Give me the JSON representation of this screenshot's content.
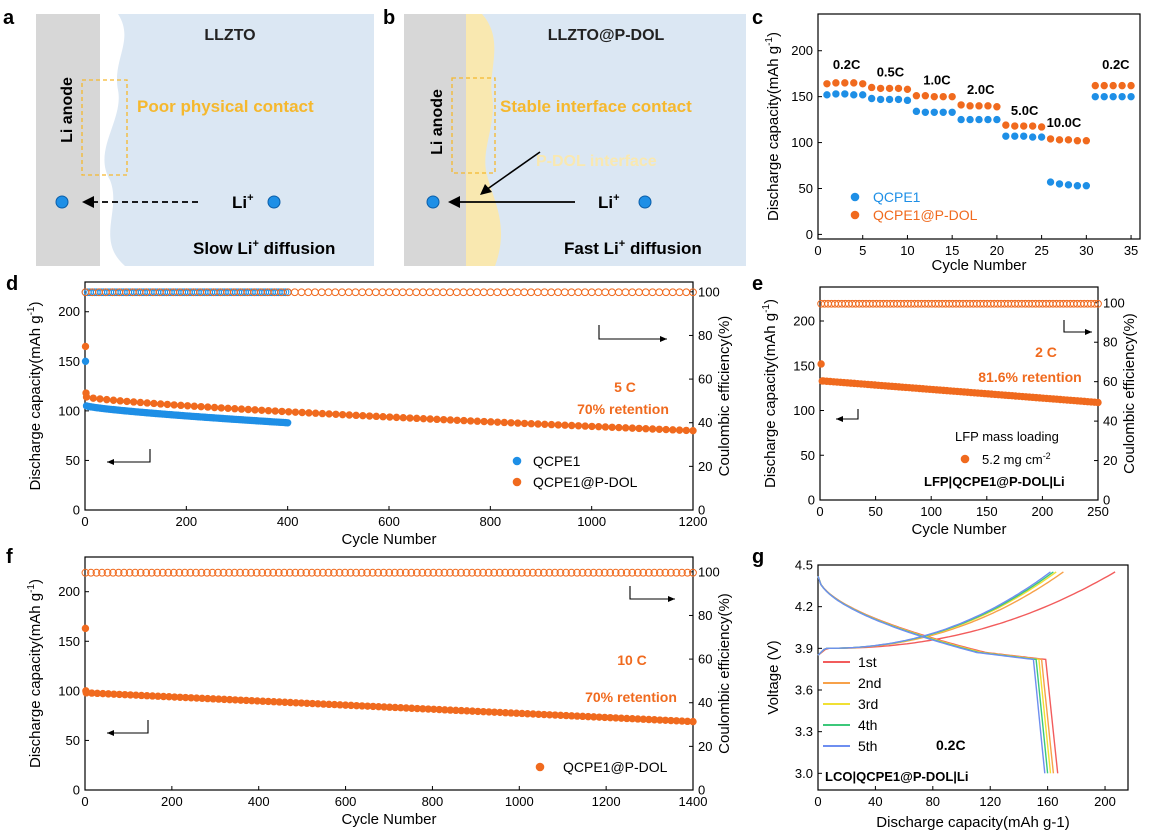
{
  "panels": {
    "a": {
      "letter": "a",
      "title": "LLZTO",
      "anode": "Li anode",
      "contact": "Poor physical contact",
      "ion": "Li",
      "ion_sup": "+",
      "diff_pre": "Slow Li",
      "diff_sup": "+",
      "diff_post": " diffusion"
    },
    "b": {
      "letter": "b",
      "title": "LLZTO@P-DOL",
      "anode": "Li anode",
      "contact": "Stable interface contact",
      "interface": "P-DOL interface",
      "ion": "Li",
      "ion_sup": "+",
      "diff_pre": "Fast Li",
      "diff_sup": "+",
      "diff_post": " diffusion"
    }
  },
  "colors": {
    "blue": "#1e8fe6",
    "orange": "#f06a1e",
    "gray": "#d7d7d7",
    "lightblue": "#dbe7f3",
    "yellow": "#f9e8b0",
    "dashbox": "#f5b82e",
    "annotation": "#f5b82e"
  },
  "chart_data": [
    {
      "panel": "c",
      "type": "scatter",
      "xlabel": "Cycle Number",
      "ylabel": "Discharge capacity(mAh g-1)",
      "xlim": [
        0,
        36
      ],
      "ylim": [
        -5,
        240
      ],
      "xticks": [
        0,
        5,
        10,
        15,
        20,
        25,
        30,
        35
      ],
      "yticks": [
        0,
        50,
        100,
        150,
        200
      ],
      "rate_labels": [
        {
          "text": "0.2C",
          "x": 3.2,
          "y": 180
        },
        {
          "text": "0.5C",
          "x": 8.1,
          "y": 172
        },
        {
          "text": "1.0C",
          "x": 13.3,
          "y": 163
        },
        {
          "text": "2.0C",
          "x": 18.2,
          "y": 153
        },
        {
          "text": "5.0C",
          "x": 23.1,
          "y": 130
        },
        {
          "text": "10.0C",
          "x": 27.5,
          "y": 117
        },
        {
          "text": "0.2C",
          "x": 33.3,
          "y": 180
        }
      ],
      "series": [
        {
          "name": "QCPE1",
          "color": "#1e8fe6",
          "points": [
            [
              1,
              152
            ],
            [
              2,
              153
            ],
            [
              3,
              153
            ],
            [
              4,
              152
            ],
            [
              5,
              152
            ],
            [
              6,
              148
            ],
            [
              7,
              147
            ],
            [
              8,
              147
            ],
            [
              9,
              147
            ],
            [
              10,
              146
            ],
            [
              11,
              134
            ],
            [
              12,
              133
            ],
            [
              13,
              133
            ],
            [
              14,
              133
            ],
            [
              15,
              133
            ],
            [
              16,
              125
            ],
            [
              17,
              125
            ],
            [
              18,
              125
            ],
            [
              19,
              125
            ],
            [
              20,
              125
            ],
            [
              21,
              107
            ],
            [
              22,
              107
            ],
            [
              23,
              107
            ],
            [
              24,
              106
            ],
            [
              25,
              106
            ],
            [
              26,
              57
            ],
            [
              27,
              55
            ],
            [
              28,
              54
            ],
            [
              29,
              53
            ],
            [
              30,
              53
            ],
            [
              31,
              150
            ],
            [
              32,
              150
            ],
            [
              33,
              150
            ],
            [
              34,
              150
            ],
            [
              35,
              150
            ]
          ]
        },
        {
          "name": "QCPE1@P-DOL",
          "color": "#f06a1e",
          "points": [
            [
              1,
              164
            ],
            [
              2,
              165
            ],
            [
              3,
              165
            ],
            [
              4,
              165
            ],
            [
              5,
              164
            ],
            [
              6,
              160
            ],
            [
              7,
              159
            ],
            [
              8,
              159
            ],
            [
              9,
              159
            ],
            [
              10,
              158
            ],
            [
              11,
              151
            ],
            [
              12,
              151
            ],
            [
              13,
              150
            ],
            [
              14,
              150
            ],
            [
              15,
              150
            ],
            [
              16,
              141
            ],
            [
              17,
              140
            ],
            [
              18,
              140
            ],
            [
              19,
              140
            ],
            [
              20,
              139
            ],
            [
              21,
              119
            ],
            [
              22,
              118
            ],
            [
              23,
              118
            ],
            [
              24,
              118
            ],
            [
              25,
              117
            ],
            [
              26,
              104
            ],
            [
              27,
              103
            ],
            [
              28,
              103
            ],
            [
              29,
              102
            ],
            [
              30,
              102
            ],
            [
              31,
              162
            ],
            [
              32,
              162
            ],
            [
              33,
              162
            ],
            [
              34,
              162
            ],
            [
              35,
              162
            ]
          ]
        }
      ]
    },
    {
      "panel": "d",
      "type": "scatter",
      "xlabel": "Cycle Number",
      "ylabel": "Discharge capacity(mAh g-1)",
      "y2label": "Coulombic efficiency(%)",
      "xlim": [
        0,
        1200
      ],
      "ylim": [
        0,
        230
      ],
      "y2lim": [
        0,
        104.5
      ],
      "xticks": [
        0,
        200,
        400,
        600,
        800,
        1000,
        1200
      ],
      "yticks": [
        0,
        50,
        100,
        150,
        200
      ],
      "y2ticks": [
        0,
        20,
        40,
        60,
        80,
        100
      ],
      "annotations": [
        "5 C",
        "70% retention"
      ],
      "series": [
        {
          "name": "QCPE1",
          "kind": "capacity",
          "color": "#1e8fe6",
          "start": 105,
          "end": 88,
          "x_end": 400,
          "first": [
            [
              1,
              150
            ]
          ]
        },
        {
          "name": "QCPE1@P-DOL",
          "kind": "capacity",
          "color": "#f06a1e",
          "start": 114,
          "end": 80,
          "x_end": 1200,
          "first": [
            [
              1,
              165
            ],
            [
              2,
              118
            ]
          ]
        },
        {
          "name": "QCPE1",
          "kind": "efficiency",
          "color": "#1e8fe6",
          "value": 99.8,
          "x_end": 400
        },
        {
          "name": "QCPE1@P-DOL",
          "kind": "efficiency",
          "color": "#f06a1e",
          "value": 99.8,
          "x_end": 1200
        }
      ]
    },
    {
      "panel": "e",
      "type": "scatter",
      "xlabel": "Cycle Number",
      "ylabel": "Discharge capacity(mAh g-1)",
      "y2label": "Coulombic efficiency(%)",
      "xlim": [
        0,
        250
      ],
      "ylim": [
        0,
        238
      ],
      "y2lim": [
        0,
        108
      ],
      "xticks": [
        0,
        50,
        100,
        150,
        200,
        250
      ],
      "yticks": [
        0,
        50,
        100,
        150,
        200
      ],
      "y2ticks": [
        0,
        20,
        40,
        60,
        80,
        100
      ],
      "annotations": [
        "2 C",
        "81.6% retention"
      ],
      "loading_label": "LFP mass loading",
      "loading_value": "5.2 mg cm-2",
      "cell_label": "LFP|QCPE1@P-DOL|Li",
      "series": [
        {
          "name": "QCPE1@P-DOL",
          "kind": "capacity",
          "color": "#f06a1e",
          "start": 133,
          "end": 109,
          "x_end": 250,
          "first": [
            [
              1,
              152
            ],
            [
              2,
              133
            ]
          ]
        },
        {
          "name": "QCPE1@P-DOL",
          "kind": "efficiency",
          "color": "#f06a1e",
          "value": 99.5,
          "x_end": 250
        }
      ]
    },
    {
      "panel": "f",
      "type": "scatter",
      "xlabel": "Cycle Number",
      "ylabel": "Discharge capacity(mAh g-1)",
      "y2label": "Coulombic efficiency(%)",
      "xlim": [
        0,
        1400
      ],
      "ylim": [
        0,
        235
      ],
      "y2lim": [
        0,
        106.8
      ],
      "xticks": [
        0,
        200,
        400,
        600,
        800,
        1000,
        1200,
        1400
      ],
      "yticks": [
        0,
        50,
        100,
        150,
        200
      ],
      "y2ticks": [
        0,
        20,
        40,
        60,
        80,
        100
      ],
      "annotations": [
        "10 C",
        "70% retention"
      ],
      "series": [
        {
          "name": "QCPE1@P-DOL",
          "kind": "capacity",
          "color": "#f06a1e",
          "start": 98,
          "end": 69,
          "x_end": 1400,
          "first": [
            [
              1,
              163
            ],
            [
              2,
              100
            ]
          ]
        },
        {
          "name": "QCPE1@P-DOL",
          "kind": "efficiency",
          "color": "#f06a1e",
          "value": 99.6,
          "x_end": 1400
        }
      ]
    },
    {
      "panel": "g",
      "type": "line",
      "xlabel": "Discharge capacity(mAh g-1)",
      "ylabel": "Voltage (V)",
      "xlim": [
        0,
        216
      ],
      "ylim": [
        2.88,
        4.5
      ],
      "xticks": [
        0,
        40,
        80,
        120,
        160,
        200
      ],
      "yticks": [
        3.0,
        3.3,
        3.6,
        3.9,
        4.2,
        4.5
      ],
      "rate": "0.2C",
      "cell_label": "LCO|QCPE1@P-DOL|Li",
      "series": [
        {
          "name": "1st",
          "color": "#f25c5c",
          "charge_cap": 207,
          "discharge_cap": 167
        },
        {
          "name": "2nd",
          "color": "#f7a14a",
          "charge_cap": 171,
          "discharge_cap": 164
        },
        {
          "name": "3rd",
          "color": "#f0e034",
          "charge_cap": 166,
          "discharge_cap": 162
        },
        {
          "name": "4th",
          "color": "#3cc87a",
          "charge_cap": 164,
          "discharge_cap": 160
        },
        {
          "name": "5th",
          "color": "#6e8ef0",
          "charge_cap": 162,
          "discharge_cap": 158
        }
      ]
    }
  ]
}
